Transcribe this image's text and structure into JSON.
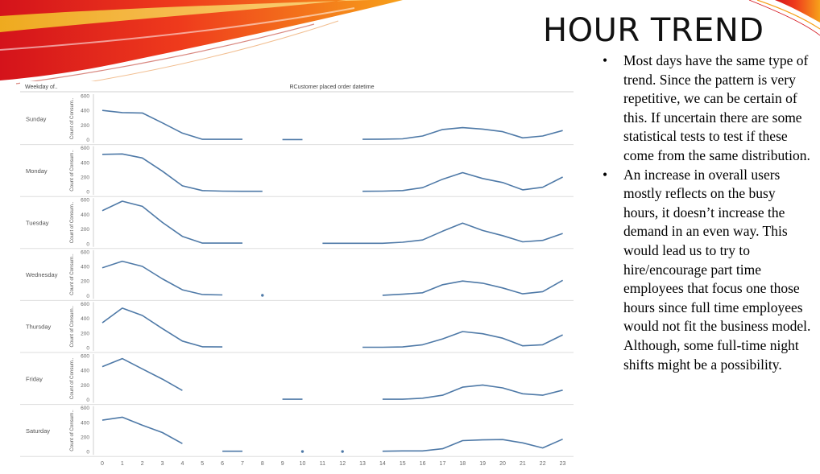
{
  "slide": {
    "title": "HOUR TREND",
    "bullets": [
      "Most days have the same type of trend. Since the pattern is very  repetitive, we can be certain of this. If uncertain there are some statistical tests to test if these come from the same distribution.",
      "An increase in overall users mostly reflects on the busy hours, it doesn’t increase the demand in an even way. This would lead us to try to hire/encourage part time employees that focus one those hours since full time employees would not fit the business model. Although, some full-time night shifts might be a possibility."
    ]
  },
  "chart_data": {
    "type": "line",
    "title": "RCustomer placed order datetime",
    "row_header": "Weekday of..",
    "ylabel": "Count of Consum..",
    "ylim": [
      0,
      600
    ],
    "yticks": [
      0,
      200,
      400,
      600
    ],
    "x": [
      0,
      1,
      2,
      3,
      4,
      5,
      6,
      7,
      8,
      9,
      10,
      11,
      12,
      13,
      14,
      15,
      16,
      17,
      18,
      19,
      20,
      21,
      22,
      23
    ],
    "line_color": "#4e79a7",
    "grid": false,
    "series": [
      {
        "name": "Sunday",
        "values": [
          400,
          370,
          365,
          230,
          90,
          5,
          5,
          5,
          null,
          2,
          2,
          null,
          null,
          5,
          8,
          12,
          50,
          140,
          165,
          145,
          110,
          25,
          50,
          125
        ]
      },
      {
        "name": "Monday",
        "values": [
          510,
          515,
          460,
          280,
          80,
          15,
          8,
          5,
          5,
          null,
          null,
          null,
          null,
          5,
          8,
          15,
          55,
          170,
          260,
          180,
          125,
          25,
          60,
          200
        ]
      },
      {
        "name": "Tuesday",
        "values": [
          450,
          580,
          510,
          290,
          100,
          8,
          8,
          8,
          null,
          null,
          null,
          5,
          5,
          5,
          5,
          20,
          50,
          170,
          280,
          180,
          110,
          25,
          45,
          140
        ]
      },
      {
        "name": "Wednesday",
        "values": [
          380,
          470,
          400,
          230,
          80,
          15,
          10,
          null,
          5,
          null,
          null,
          null,
          null,
          null,
          5,
          20,
          40,
          150,
          200,
          170,
          105,
          25,
          55,
          210
        ]
      },
      {
        "name": "Thursday",
        "values": [
          340,
          540,
          440,
          260,
          90,
          12,
          10,
          null,
          null,
          null,
          null,
          null,
          null,
          5,
          5,
          10,
          40,
          120,
          220,
          190,
          130,
          25,
          40,
          175
        ]
      },
      {
        "name": "Friday",
        "values": [
          450,
          560,
          420,
          280,
          125,
          null,
          null,
          null,
          null,
          5,
          5,
          null,
          null,
          null,
          5,
          5,
          20,
          60,
          170,
          200,
          160,
          80,
          60,
          130
        ]
      },
      {
        "name": "Saturday",
        "values": [
          430,
          470,
          360,
          260,
          110,
          null,
          5,
          5,
          null,
          null,
          2,
          null,
          2,
          null,
          5,
          10,
          10,
          40,
          150,
          160,
          165,
          120,
          50,
          170
        ]
      }
    ]
  }
}
